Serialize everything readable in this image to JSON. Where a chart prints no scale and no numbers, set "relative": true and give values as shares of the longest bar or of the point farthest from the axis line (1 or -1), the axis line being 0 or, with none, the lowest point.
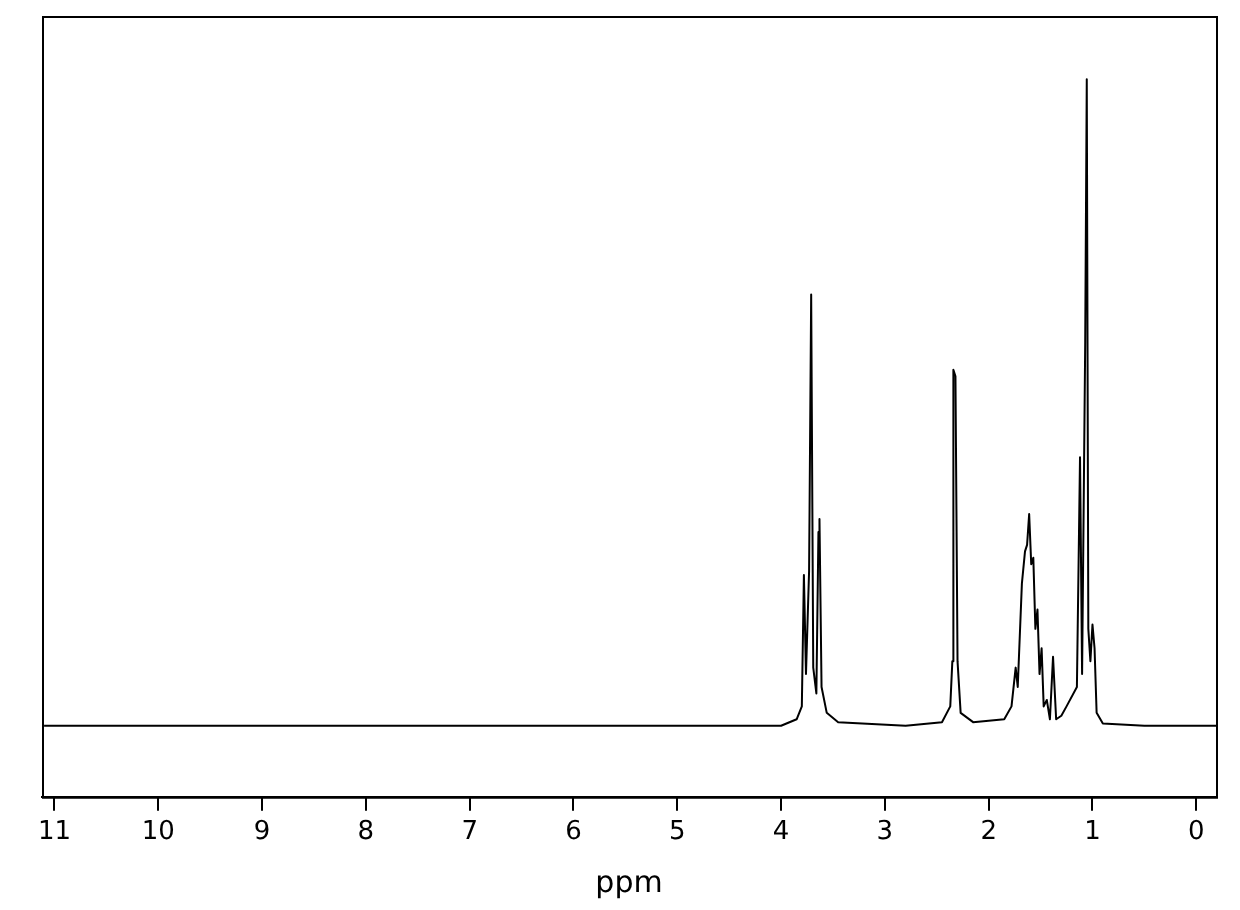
{
  "chart_data": {
    "type": "line",
    "xlabel": "ppm",
    "relative": true,
    "xlim": [
      11.12,
      -0.19
    ],
    "xticks": [
      11,
      10,
      9,
      8,
      7,
      6,
      5,
      4,
      3,
      2,
      1,
      0
    ],
    "grid": false,
    "legend": false,
    "marker": "none",
    "line_style": "solid",
    "x": [
      11.1,
      8,
      5,
      4.0,
      3.85,
      3.8,
      3.78,
      3.76,
      3.73,
      3.71,
      3.69,
      3.66,
      3.64,
      3.63,
      3.61,
      3.56,
      3.45,
      2.8,
      2.45,
      2.37,
      2.35,
      2.34,
      2.32,
      2.3,
      2.27,
      2.15,
      1.85,
      1.78,
      1.74,
      1.72,
      1.68,
      1.65,
      1.63,
      1.61,
      1.59,
      1.57,
      1.55,
      1.53,
      1.51,
      1.49,
      1.47,
      1.44,
      1.41,
      1.38,
      1.35,
      1.3,
      1.25,
      1.15,
      1.12,
      1.1,
      1.07,
      1.055,
      1.04,
      1.02,
      1.0,
      0.98,
      0.96,
      0.9,
      0.5,
      -0.19
    ],
    "series": [
      {
        "color": "#000000",
        "values": [
          0.099,
          0.099,
          0.099,
          0.099,
          0.108,
          0.126,
          0.309,
          0.171,
          0.315,
          0.7,
          0.18,
          0.144,
          0.369,
          0.387,
          0.153,
          0.117,
          0.104,
          0.099,
          0.104,
          0.126,
          0.189,
          0.595,
          0.586,
          0.189,
          0.117,
          0.104,
          0.108,
          0.126,
          0.18,
          0.153,
          0.297,
          0.342,
          0.351,
          0.394,
          0.324,
          0.333,
          0.234,
          0.261,
          0.171,
          0.207,
          0.126,
          0.135,
          0.108,
          0.195,
          0.108,
          0.113,
          0.126,
          0.153,
          0.473,
          0.171,
          0.634,
          1.0,
          0.234,
          0.189,
          0.24,
          0.207,
          0.117,
          0.102,
          0.099,
          0.099
        ]
      }
    ]
  }
}
